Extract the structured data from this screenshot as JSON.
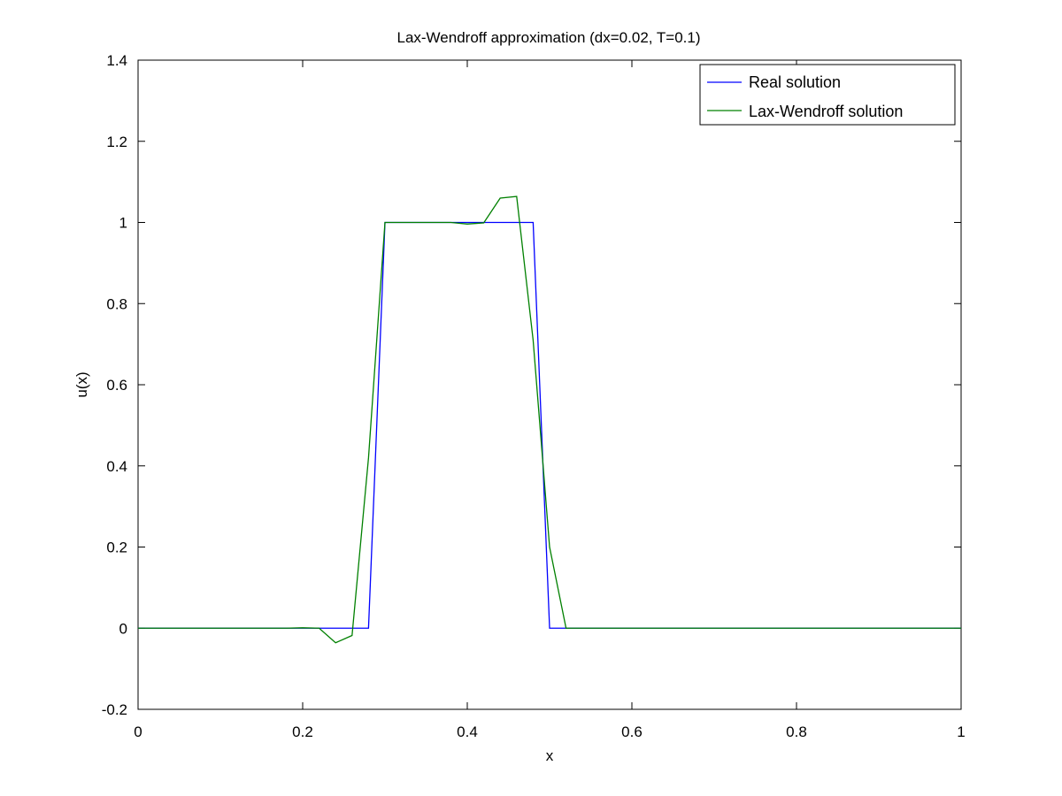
{
  "chart_data": {
    "type": "line",
    "title": "Lax-Wendroff approximation (dx=0.02, T=0.1)",
    "xlabel": "x",
    "ylabel": "u(x)",
    "xlim": [
      0,
      1
    ],
    "ylim": [
      -0.2,
      1.4
    ],
    "x_ticks": [
      0,
      0.2,
      0.4,
      0.6,
      0.8,
      1
    ],
    "x_tick_labels": [
      "0",
      "0.2",
      "0.4",
      "0.6",
      "0.8",
      "1"
    ],
    "y_ticks": [
      -0.2,
      0,
      0.2,
      0.4,
      0.6,
      0.8,
      1,
      1.2,
      1.4
    ],
    "y_tick_labels": [
      "-0.2",
      "0",
      "0.2",
      "0.4",
      "0.6",
      "0.8",
      "1",
      "1.2",
      "1.4"
    ],
    "grid": false,
    "legend_position": "top-right",
    "series": [
      {
        "name": "Real solution",
        "color": "#0000ff",
        "x": [
          0,
          0.28,
          0.3,
          0.48,
          0.5,
          1.0
        ],
        "y": [
          0,
          0,
          1,
          1,
          0,
          0
        ]
      },
      {
        "name": "Lax-Wendroff solution",
        "color": "#008000",
        "x": [
          0,
          0.02,
          0.04,
          0.06,
          0.08,
          0.1,
          0.12,
          0.14,
          0.16,
          0.18,
          0.2,
          0.22,
          0.24,
          0.26,
          0.28,
          0.3,
          0.32,
          0.34,
          0.36,
          0.38,
          0.4,
          0.42,
          0.44,
          0.46,
          0.48,
          0.5,
          0.52,
          0.54,
          0.56,
          0.58,
          0.6,
          0.62,
          0.64,
          0.66,
          0.68,
          0.7,
          0.72,
          0.74,
          0.76,
          0.78,
          0.8,
          0.82,
          0.84,
          0.86,
          0.88,
          0.9,
          0.92,
          0.94,
          0.96,
          0.98,
          1.0
        ],
        "y": [
          0,
          0,
          0,
          0,
          0,
          0,
          0,
          0,
          0,
          0,
          0.001,
          0,
          -0.036,
          -0.018,
          0.42,
          1.0,
          1.0,
          1.0,
          1.0,
          1.0,
          0.996,
          0.999,
          1.06,
          1.064,
          0.71,
          0.2,
          0,
          0,
          0,
          0,
          0,
          0,
          0,
          0,
          0,
          0,
          0,
          0,
          0,
          0,
          0,
          0,
          0,
          0,
          0,
          0,
          0,
          0,
          0,
          0,
          0
        ]
      }
    ]
  }
}
